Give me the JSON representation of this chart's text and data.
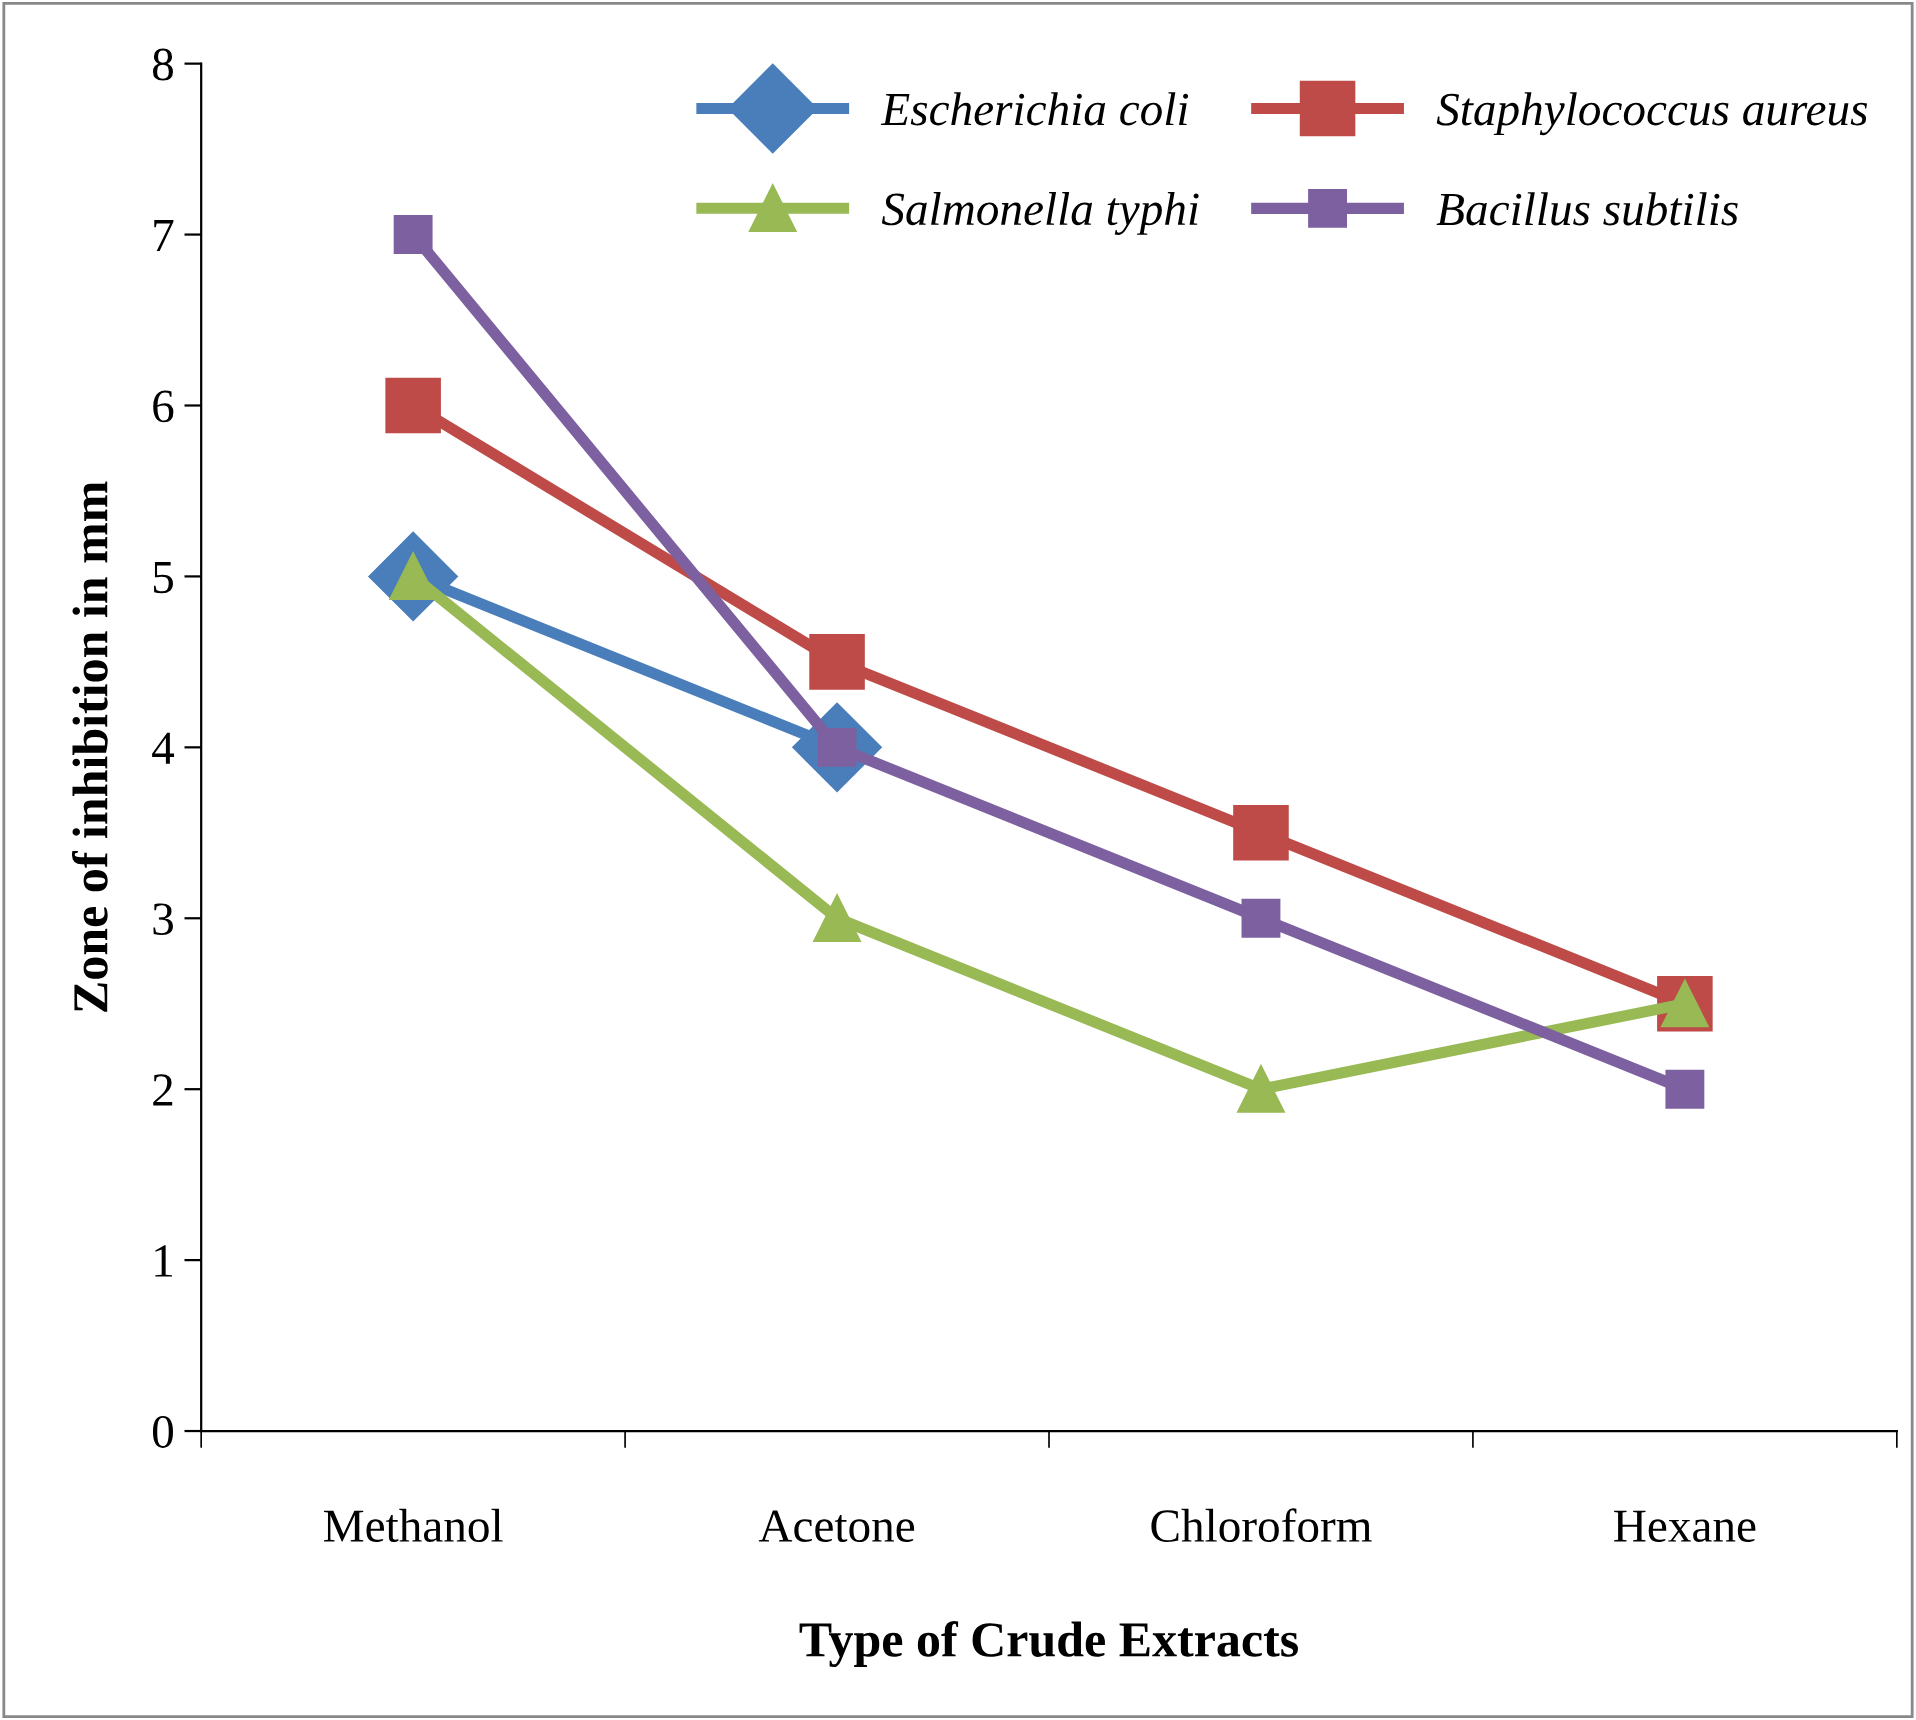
{
  "chart_data": {
    "type": "line",
    "xlabel": "Type of Crude Extracts",
    "ylabel": "Zone of inhibition in mm",
    "categories": [
      "Methanol",
      "Acetone",
      "Chloroform",
      "Hexane"
    ],
    "series": [
      {
        "name": "Escherichia coli",
        "color": "#4a7ebb",
        "marker": "diamond",
        "values": [
          5,
          4,
          null,
          null
        ]
      },
      {
        "name": "Staphylococcus aureus",
        "color": "#be4b48",
        "marker": "square",
        "values": [
          6,
          4.5,
          3.5,
          2.5
        ]
      },
      {
        "name": "Salmonella typhi",
        "color": "#98b954",
        "marker": "triangle",
        "values": [
          5,
          3,
          2,
          2.5
        ]
      },
      {
        "name": "Bacillus subtilis",
        "color": "#7d60a0",
        "marker": "square",
        "values": [
          7,
          4,
          3,
          2
        ]
      }
    ],
    "ylim": [
      0,
      8
    ],
    "yticks": [
      0,
      1,
      2,
      3,
      4,
      5,
      6,
      7,
      8
    ],
    "grid": false,
    "legend": "top right",
    "line_style": "solid"
  }
}
